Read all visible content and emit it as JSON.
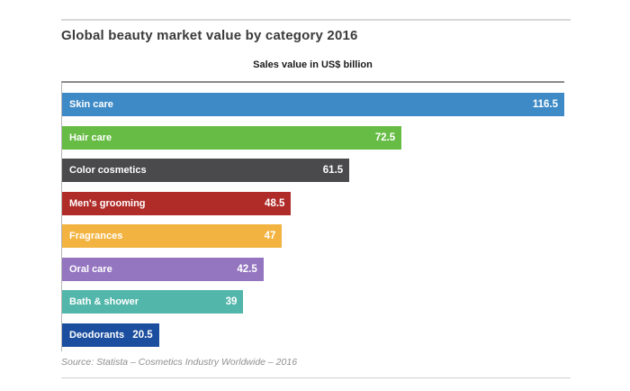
{
  "header": {
    "title": "Global beauty market value by category 2016",
    "subtitle": "Sales value in US$ billion"
  },
  "chart_data": {
    "type": "bar",
    "orientation": "horizontal",
    "title": "Global beauty market value by category 2016",
    "xlabel": "Sales value in US$ billion",
    "categories": [
      "Skin care",
      "Hair care",
      "Color cosmetics",
      "Men's grooming",
      "Fragrances",
      "Oral care",
      "Bath & shower",
      "Deodorants"
    ],
    "values": [
      116.5,
      72.5,
      61.5,
      48.5,
      47,
      42.5,
      39,
      20.5
    ],
    "value_labels": [
      "116.5",
      "72.5",
      "61.5",
      "48.5",
      "47",
      "42.5",
      "39",
      "20.5"
    ],
    "bar_colors": [
      "#3d8ac6",
      "#67bc45",
      "#4a4a4c",
      "#b02c29",
      "#f3b340",
      "#9475c0",
      "#52b6aa",
      "#1b4e9e"
    ],
    "bar_width_pct": [
      100,
      67.6,
      57.2,
      45.6,
      43.8,
      40.1,
      36.1,
      19.3
    ],
    "label_color": "#ffffff",
    "grid": false,
    "legend": false,
    "value_label_position": "inside-end"
  },
  "footer": {
    "source": "Source: Statista – Cosmetics Industry Worldwide – 2016"
  }
}
